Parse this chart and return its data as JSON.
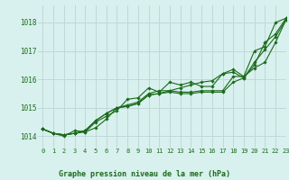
{
  "title": "Graphe pression niveau de la mer (hPa)",
  "background_color": "#d8f0ee",
  "grid_color": "#c0d8d8",
  "line_color": "#1a6b1a",
  "xlim": [
    -0.5,
    23
  ],
  "ylim": [
    1013.6,
    1018.6
  ],
  "yticks": [
    1014,
    1015,
    1016,
    1017,
    1018
  ],
  "xticks": [
    0,
    1,
    2,
    3,
    4,
    5,
    6,
    7,
    8,
    9,
    10,
    11,
    12,
    13,
    14,
    15,
    16,
    17,
    18,
    19,
    20,
    21,
    22,
    23
  ],
  "series": [
    [
      1014.25,
      1014.1,
      1014.0,
      1014.2,
      1014.15,
      1014.3,
      1014.6,
      1015.0,
      1015.1,
      1015.2,
      1015.5,
      1015.6,
      1015.6,
      1015.55,
      1015.55,
      1015.6,
      1015.6,
      1015.6,
      1016.1,
      1016.1,
      1017.0,
      1017.15,
      1018.0,
      1018.15
    ],
    [
      1014.25,
      1014.1,
      1014.05,
      1014.1,
      1014.15,
      1014.5,
      1014.7,
      1014.9,
      1015.3,
      1015.35,
      1015.7,
      1015.55,
      1015.9,
      1015.8,
      1015.9,
      1015.75,
      1015.75,
      1016.2,
      1016.25,
      1016.05,
      1016.5,
      1017.3,
      1017.6,
      1018.15
    ],
    [
      1014.25,
      1014.1,
      1014.05,
      1014.1,
      1014.2,
      1014.55,
      1014.8,
      1015.0,
      1015.05,
      1015.15,
      1015.45,
      1015.5,
      1015.55,
      1015.5,
      1015.5,
      1015.55,
      1015.55,
      1015.55,
      1015.9,
      1016.05,
      1016.6,
      1017.05,
      1017.5,
      1018.1
    ],
    [
      1014.25,
      1014.1,
      1014.05,
      1014.1,
      1014.2,
      1014.55,
      1014.8,
      1015.0,
      1015.05,
      1015.15,
      1015.45,
      1015.5,
      1015.6,
      1015.7,
      1015.8,
      1015.9,
      1015.95,
      1016.2,
      1016.35,
      1016.1,
      1016.4,
      1016.6,
      1017.3,
      1018.1
    ]
  ]
}
